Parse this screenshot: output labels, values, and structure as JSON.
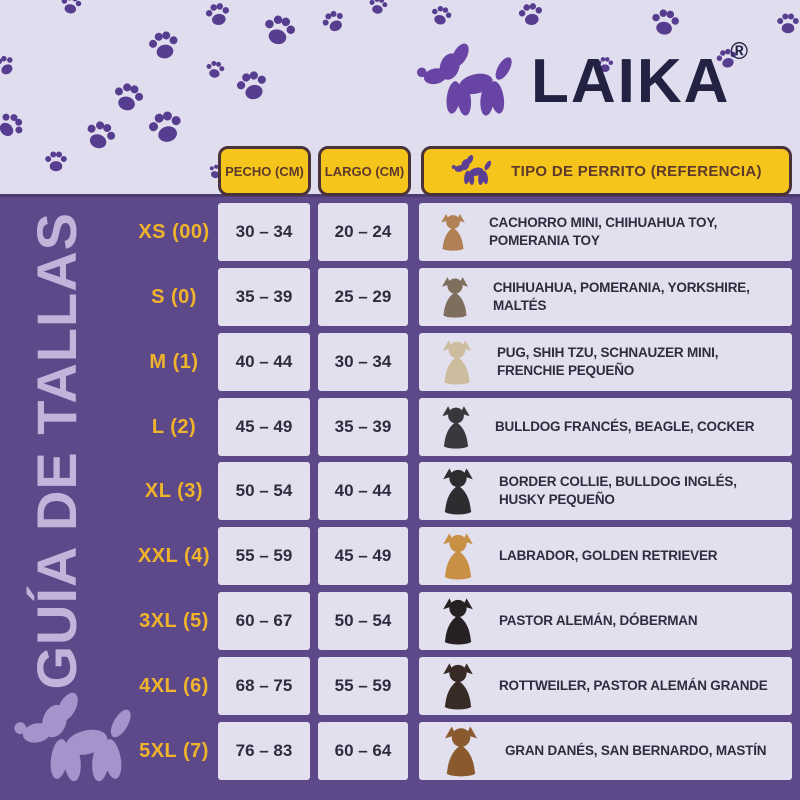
{
  "brand": {
    "name": "LAIKA",
    "registered": "®",
    "logo_icon": "balloon-dog-icon"
  },
  "sidebar": {
    "title": "GUÍA DE TALLAS",
    "icon": "balloon-dog-icon"
  },
  "colors": {
    "background_purple": "#5d4989",
    "header_lavender": "#e0deee",
    "accent_yellow": "#f6c51b",
    "size_label_yellow": "#f0b32c",
    "brand_navy": "#232243",
    "paw_purple": "#573d90",
    "badge_text_brown": "#5c392b",
    "title_lilac": "#c2b3db"
  },
  "table": {
    "headers": {
      "pecho": "PECHO (CM)",
      "largo": "LARGO (CM)",
      "tipo": "TIPO DE PERRITO (REFERENCIA)",
      "tipo_icon": "balloon-dog-icon"
    },
    "rows": [
      {
        "size": "XS (00)",
        "pecho": "30 – 34",
        "largo": "20 – 24",
        "breeds": "CACHORRO MINI, CHIHUAHUA TOY, POMERANIA TOY",
        "dog": "chihuahua",
        "dog_color": "#b08154"
      },
      {
        "size": "S (0)",
        "pecho": "35 – 39",
        "largo": "25 – 29",
        "breeds": "CHIHUAHUA, POMERANIA, YORKSHIRE, MALTÉS",
        "dog": "yorkshire",
        "dog_color": "#7d6e5d"
      },
      {
        "size": "M (1)",
        "pecho": "40 – 44",
        "largo": "30 – 34",
        "breeds": "PUG, SHIH TZU, SCHNAUZER MINI, FRENCHIE PEQUEÑO",
        "dog": "shih-tzu",
        "dog_color": "#cdbd9f"
      },
      {
        "size": "L (2)",
        "pecho": "45 – 49",
        "largo": "35 – 39",
        "breeds": "BULLDOG FRANCÉS, BEAGLE, COCKER",
        "dog": "french-bulldog",
        "dog_color": "#39393d"
      },
      {
        "size": "XL (3)",
        "pecho": "50 – 54",
        "largo": "40 – 44",
        "breeds": "BORDER COLLIE, BULLDOG INGLÉS, HUSKY PEQUEÑO",
        "dog": "border-collie",
        "dog_color": "#2d2d30"
      },
      {
        "size": "XXL (4)",
        "pecho": "55 – 59",
        "largo": "45 – 49",
        "breeds": "LABRADOR, GOLDEN RETRIEVER",
        "dog": "golden-retriever",
        "dog_color": "#c89044"
      },
      {
        "size": "3XL (5)",
        "pecho": "60 – 67",
        "largo": "50 – 54",
        "breeds": "PASTOR ALEMÁN, DÓBERMAN",
        "dog": "doberman",
        "dog_color": "#262022"
      },
      {
        "size": "4XL (6)",
        "pecho": "68 – 75",
        "largo": "55 – 59",
        "breeds": "ROTTWEILER, PASTOR ALEMÁN GRANDE",
        "dog": "rottweiler",
        "dog_color": "#382b26"
      },
      {
        "size": "5XL (7)",
        "pecho": "76 – 83",
        "largo": "60 – 64",
        "breeds": "GRAN DANÉS, SAN BERNARDO, MASTÍN",
        "dog": "mastiff",
        "dog_color": "#8a5a2e"
      }
    ]
  }
}
